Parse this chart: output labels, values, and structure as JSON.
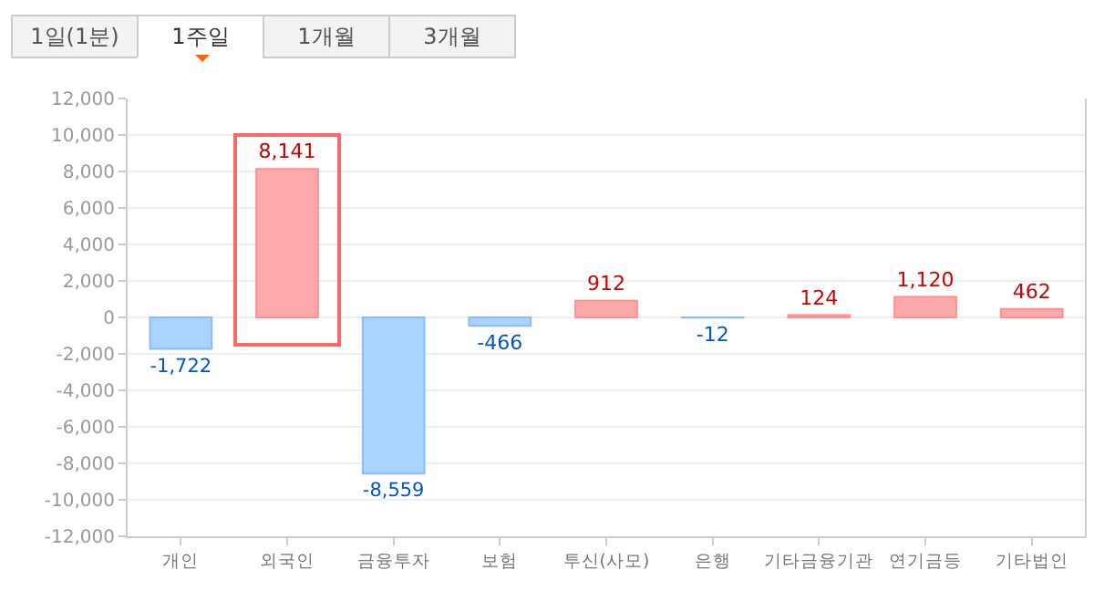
{
  "chart_data": {
    "type": "bar",
    "annotations": [
      "1일(1분)",
      "1주일",
      "1개월",
      "3개월"
    ],
    "categories": [
      "개인",
      "외국인",
      "금융투자",
      "보험",
      "투신(사모)",
      "은행",
      "기타금융기관",
      "연기금등",
      "기타법인"
    ],
    "values": [
      -1722,
      8141,
      -8559,
      -466,
      912,
      -12,
      124,
      1120,
      462
    ],
    "colors": [
      "#aad4ff",
      "#ffaaaa",
      "#aad4ff",
      "#aad4ff",
      "#ffaaaa",
      "#aad4ff",
      "#ffaaaa",
      "#ffaaaa",
      "#ffaaaa"
    ],
    "value_labels": [
      "-1,722",
      "8,141",
      "-8,559",
      "-466",
      "912",
      "-12",
      "124",
      "1,120",
      "462"
    ],
    "ylim": [
      -12000,
      12000
    ],
    "yticks": [
      {
        "value": -12000,
        "label": "-12,000"
      },
      {
        "value": -10000,
        "label": "-10,000"
      },
      {
        "value": -8000,
        "label": "-8,000"
      },
      {
        "value": -6000,
        "label": "-6,000"
      },
      {
        "value": -4000,
        "label": "-4,000"
      },
      {
        "value": -2000,
        "label": "-2,000"
      },
      0,
      {
        "value": 2000,
        "label": "2,000"
      },
      {
        "value": 4000,
        "label": "4,000"
      },
      {
        "value": 6000,
        "label": "6,000"
      },
      {
        "value": 8000,
        "label": "8,000"
      },
      {
        "value": 10000,
        "label": "10,000"
      },
      {
        "value": 12000,
        "label": "12,000"
      }
    ],
    "grid": "y"
  }
}
